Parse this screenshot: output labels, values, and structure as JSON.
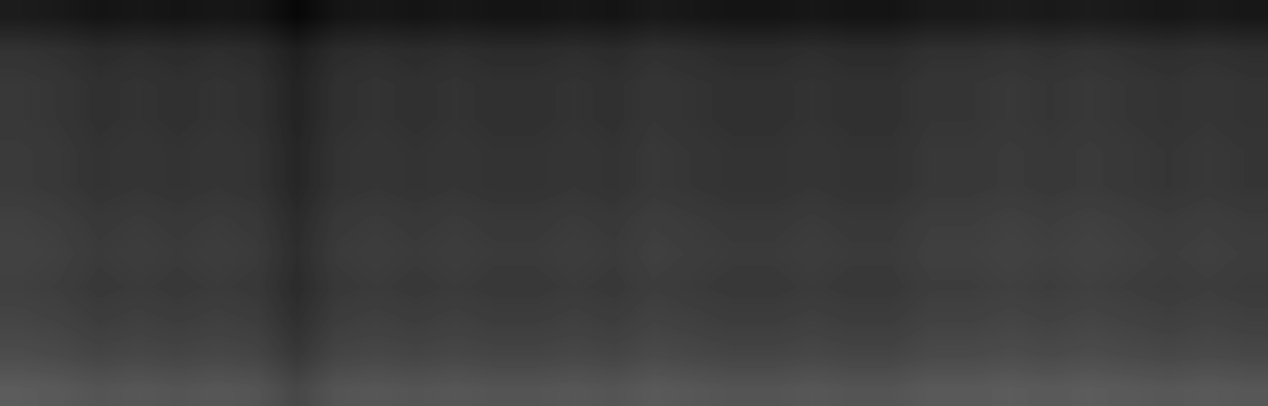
{
  "chart_data": {
    "type": "heatmap",
    "tick_labels": false,
    "color": "gray",
    "value_range": [
      0,
      1
    ],
    "cells": [
      [
        0.11,
        0.1,
        0.08,
        0.09,
        0.08,
        0.09,
        0.08,
        0.03,
        0.08,
        0.09,
        0.08,
        0.09,
        0.08,
        0.08,
        0.09,
        0.08,
        0.1,
        0.09,
        0.08,
        0.08,
        0.09,
        0.08,
        0.08,
        0.1,
        0.1,
        0.11,
        0.1,
        0.11,
        0.1,
        0.09,
        0.1,
        0.09
      ],
      [
        0.2,
        0.19,
        0.17,
        0.18,
        0.17,
        0.18,
        0.17,
        0.12,
        0.17,
        0.18,
        0.17,
        0.18,
        0.17,
        0.17,
        0.18,
        0.17,
        0.19,
        0.18,
        0.17,
        0.17,
        0.18,
        0.17,
        0.17,
        0.19,
        0.19,
        0.2,
        0.19,
        0.2,
        0.19,
        0.18,
        0.19,
        0.18
      ],
      [
        0.22,
        0.21,
        0.19,
        0.2,
        0.19,
        0.2,
        0.19,
        0.14,
        0.19,
        0.2,
        0.19,
        0.2,
        0.19,
        0.19,
        0.2,
        0.19,
        0.21,
        0.2,
        0.19,
        0.19,
        0.2,
        0.19,
        0.19,
        0.21,
        0.21,
        0.22,
        0.21,
        0.22,
        0.21,
        0.2,
        0.21,
        0.2
      ],
      [
        0.22,
        0.21,
        0.19,
        0.2,
        0.19,
        0.2,
        0.19,
        0.14,
        0.19,
        0.2,
        0.19,
        0.2,
        0.19,
        0.19,
        0.2,
        0.19,
        0.21,
        0.2,
        0.19,
        0.19,
        0.2,
        0.19,
        0.19,
        0.21,
        0.21,
        0.22,
        0.21,
        0.22,
        0.21,
        0.2,
        0.21,
        0.2
      ],
      [
        0.23,
        0.22,
        0.2,
        0.21,
        0.2,
        0.21,
        0.2,
        0.15,
        0.2,
        0.21,
        0.2,
        0.21,
        0.2,
        0.2,
        0.21,
        0.2,
        0.22,
        0.21,
        0.2,
        0.2,
        0.21,
        0.2,
        0.2,
        0.22,
        0.22,
        0.23,
        0.22,
        0.23,
        0.22,
        0.21,
        0.22,
        0.21
      ],
      [
        0.23,
        0.22,
        0.2,
        0.21,
        0.2,
        0.21,
        0.2,
        0.15,
        0.2,
        0.21,
        0.2,
        0.21,
        0.2,
        0.2,
        0.21,
        0.2,
        0.22,
        0.21,
        0.2,
        0.2,
        0.21,
        0.2,
        0.2,
        0.22,
        0.22,
        0.23,
        0.22,
        0.23,
        0.22,
        0.21,
        0.22,
        0.21
      ],
      [
        0.25,
        0.24,
        0.22,
        0.23,
        0.22,
        0.23,
        0.22,
        0.17,
        0.22,
        0.23,
        0.22,
        0.23,
        0.22,
        0.22,
        0.23,
        0.22,
        0.24,
        0.23,
        0.22,
        0.22,
        0.23,
        0.22,
        0.22,
        0.24,
        0.24,
        0.25,
        0.24,
        0.25,
        0.24,
        0.23,
        0.24,
        0.23
      ],
      [
        0.26,
        0.25,
        0.23,
        0.24,
        0.23,
        0.24,
        0.23,
        0.18,
        0.23,
        0.24,
        0.23,
        0.24,
        0.23,
        0.23,
        0.24,
        0.23,
        0.25,
        0.24,
        0.23,
        0.23,
        0.24,
        0.23,
        0.23,
        0.25,
        0.25,
        0.26,
        0.25,
        0.26,
        0.25,
        0.24,
        0.25,
        0.24
      ],
      [
        0.25,
        0.24,
        0.22,
        0.23,
        0.22,
        0.23,
        0.22,
        0.17,
        0.22,
        0.23,
        0.22,
        0.23,
        0.22,
        0.22,
        0.23,
        0.22,
        0.24,
        0.23,
        0.22,
        0.22,
        0.23,
        0.22,
        0.22,
        0.24,
        0.24,
        0.25,
        0.24,
        0.25,
        0.24,
        0.23,
        0.24,
        0.23
      ],
      [
        0.27,
        0.26,
        0.24,
        0.25,
        0.24,
        0.25,
        0.24,
        0.19,
        0.24,
        0.25,
        0.24,
        0.25,
        0.24,
        0.24,
        0.25,
        0.24,
        0.26,
        0.25,
        0.24,
        0.24,
        0.25,
        0.24,
        0.24,
        0.26,
        0.26,
        0.27,
        0.26,
        0.27,
        0.26,
        0.25,
        0.26,
        0.25
      ],
      [
        0.3,
        0.29,
        0.27,
        0.28,
        0.27,
        0.28,
        0.27,
        0.22,
        0.27,
        0.28,
        0.27,
        0.28,
        0.27,
        0.27,
        0.28,
        0.27,
        0.29,
        0.28,
        0.27,
        0.27,
        0.28,
        0.27,
        0.27,
        0.29,
        0.29,
        0.3,
        0.29,
        0.3,
        0.29,
        0.28,
        0.29,
        0.28
      ],
      [
        0.36,
        0.35,
        0.33,
        0.34,
        0.33,
        0.34,
        0.33,
        0.28,
        0.33,
        0.34,
        0.33,
        0.34,
        0.33,
        0.33,
        0.34,
        0.33,
        0.35,
        0.34,
        0.33,
        0.33,
        0.34,
        0.33,
        0.33,
        0.35,
        0.35,
        0.36,
        0.35,
        0.36,
        0.35,
        0.34,
        0.35,
        0.34
      ]
    ]
  }
}
